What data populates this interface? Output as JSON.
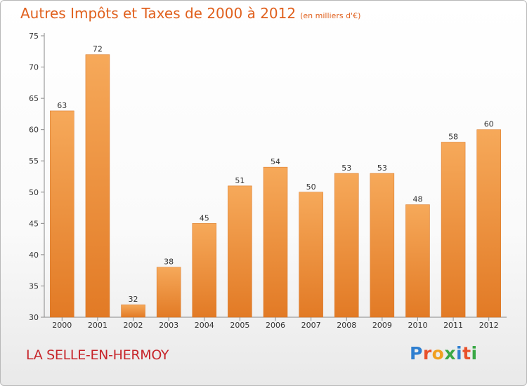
{
  "header": {
    "title": "Autres Impôts et Taxes de 2000 à 2012",
    "unit": "(en milliers d'€)"
  },
  "footer": {
    "commune": "LA SELLE-EN-HERMOY",
    "logo_letters": [
      "P",
      "r",
      "o",
      "x",
      "i",
      "t",
      "i"
    ],
    "logo_colors": [
      "#2f7fd0",
      "#e8502a",
      "#f0a020",
      "#3aa845",
      "#2f7fd0",
      "#e8502a",
      "#3aa845"
    ]
  },
  "colors": {
    "bar_light": "#f6a95a",
    "bar_dark": "#e27a25",
    "title": "#e0601d",
    "commune": "#c7252a"
  },
  "chart_data": {
    "type": "bar",
    "categories": [
      "2000",
      "2001",
      "2002",
      "2003",
      "2004",
      "2005",
      "2006",
      "2007",
      "2008",
      "2009",
      "2010",
      "2011",
      "2012"
    ],
    "values": [
      63,
      72,
      32,
      38,
      45,
      51,
      54,
      50,
      53,
      53,
      48,
      58,
      60
    ],
    "title": "Autres Impôts et Taxes de 2000 à 2012",
    "subtitle": "(en milliers d'€)",
    "xlabel": "",
    "ylabel": "",
    "ylim": [
      30,
      75
    ],
    "yticks": [
      30,
      35,
      40,
      45,
      50,
      55,
      60,
      65,
      70,
      75
    ],
    "grid": false
  }
}
